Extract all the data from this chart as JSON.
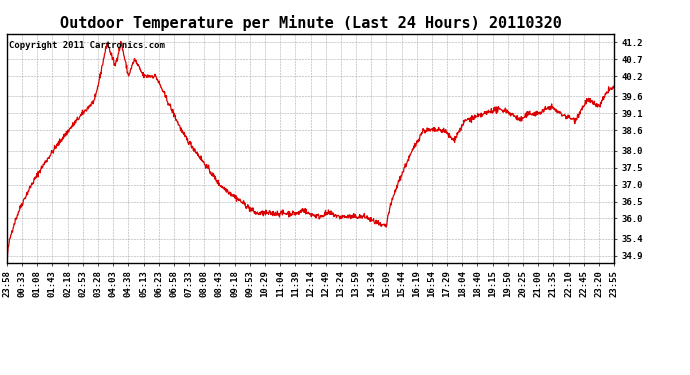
{
  "title": "Outdoor Temperature per Minute (Last 24 Hours) 20110320",
  "copyright": "Copyright 2011 Cartronics.com",
  "line_color": "#dd0000",
  "bg_color": "#ffffff",
  "plot_bg_color": "#ffffff",
  "grid_color": "#aaaaaa",
  "ylim": [
    34.7,
    41.45
  ],
  "yticks": [
    34.9,
    35.4,
    36.0,
    36.5,
    37.0,
    37.5,
    38.0,
    38.6,
    39.1,
    39.6,
    40.2,
    40.7,
    41.2
  ],
  "xtick_labels": [
    "23:58",
    "00:33",
    "01:08",
    "01:43",
    "02:18",
    "02:53",
    "03:28",
    "04:03",
    "04:38",
    "05:13",
    "06:23",
    "06:58",
    "07:33",
    "08:08",
    "08:43",
    "09:18",
    "09:53",
    "10:29",
    "11:04",
    "11:39",
    "12:14",
    "12:49",
    "13:24",
    "13:59",
    "14:34",
    "15:09",
    "15:44",
    "16:19",
    "16:54",
    "17:29",
    "18:04",
    "18:40",
    "19:15",
    "19:50",
    "20:25",
    "21:00",
    "21:35",
    "22:10",
    "22:45",
    "23:20",
    "23:55"
  ],
  "title_fontsize": 11,
  "tick_fontsize": 6.5,
  "copyright_fontsize": 6.5,
  "line_width": 0.9
}
